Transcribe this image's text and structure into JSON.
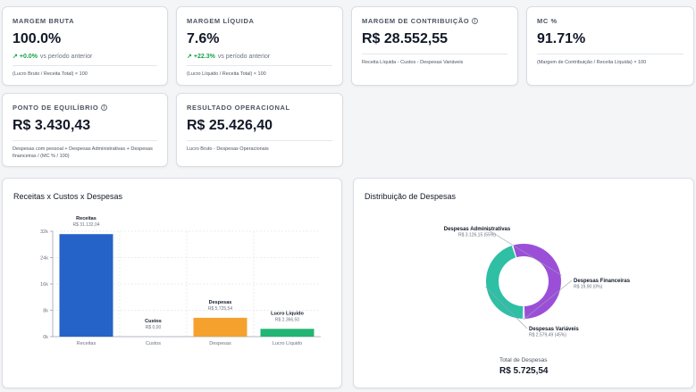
{
  "kpis": {
    "margem_bruta": {
      "title": "MARGEM BRUTA",
      "value": "100.0%",
      "trend_value": "+0.0%",
      "trend_label": "vs período anterior",
      "formula": "(Lucro Bruto / Receita Total) × 100"
    },
    "margem_liquida": {
      "title": "MARGEM LÍQUIDA",
      "value": "7.6%",
      "trend_value": "+22.3%",
      "trend_label": "vs período anterior",
      "formula": "(Lucro Líquido / Receita Total) × 100"
    },
    "margem_contribuicao": {
      "title": "MARGEM DE CONTRIBUIÇÃO",
      "value": "R$ 28.552,55",
      "formula": "Receita Líquida - Custos - Despesas Variáveis"
    },
    "mc_percent": {
      "title": "MC %",
      "value": "91.71%",
      "formula": "(Margem de Contribuição / Receita Líquida) × 100"
    },
    "ponto_equilibrio": {
      "title": "PONTO DE EQUILÍBRIO",
      "value": "R$ 3.430,43",
      "formula": "Despesas com pessoal + Despesas Administrativas + Despesas financeiras / (MC % / 100)"
    },
    "resultado_operacional": {
      "title": "RESULTADO OPERACIONAL",
      "value": "R$ 25.426,40",
      "formula": "Lucro Bruto - Despesas Operacionais"
    }
  },
  "icons": {
    "info": "info-icon",
    "trend": "trending-up-icon"
  },
  "colors": {
    "receitas": "#2563c9",
    "despesas": "#f5a12e",
    "lucro": "#22b573",
    "desp_admin": "#9b4fd8",
    "desp_fin": "#5b7fd6",
    "desp_var": "#2ebfa5",
    "trend": "#16a34a"
  },
  "bar_panel": {
    "title": "Receitas x Custos x Despesas"
  },
  "donut_panel": {
    "title": "Distribuição de Despesas",
    "total_label": "Total de Despesas",
    "total_value": "R$ 5.725,54"
  },
  "chart_data": [
    {
      "type": "bar",
      "title": "Receitas x Custos x Despesas",
      "categories": [
        "Receitas",
        "Custos",
        "Despesas",
        "Lucro Líquido"
      ],
      "values": [
        31132.04,
        0,
        5725.54,
        2366.5
      ],
      "value_labels": [
        "R$ 31.132,04",
        "R$ 0,00",
        "R$ 5.725,54",
        "R$ 2.366,50"
      ],
      "ylim": [
        0,
        32000
      ],
      "yticks": [
        0,
        8000,
        16000,
        24000,
        32000
      ],
      "ytick_labels": [
        "0k",
        "8k",
        "16k",
        "24k",
        "32k"
      ],
      "grid": true
    },
    {
      "type": "pie",
      "title": "Distribuição de Despesas",
      "donut": true,
      "slices": [
        {
          "label": "Despesas Administrativas",
          "value": 3126.15,
          "value_label": "R$ 3.126,15 (55%)",
          "percent": 55
        },
        {
          "label": "Despesas Financeiras",
          "value": 19.9,
          "value_label": "R$ 19,90 (0%)",
          "percent": 0
        },
        {
          "label": "Despesas Variáveis",
          "value": 2579.49,
          "value_label": "R$ 2.579,49 (45%)",
          "percent": 45
        }
      ],
      "total_label": "Total de Despesas",
      "total_value": "R$ 5.725,54"
    }
  ]
}
